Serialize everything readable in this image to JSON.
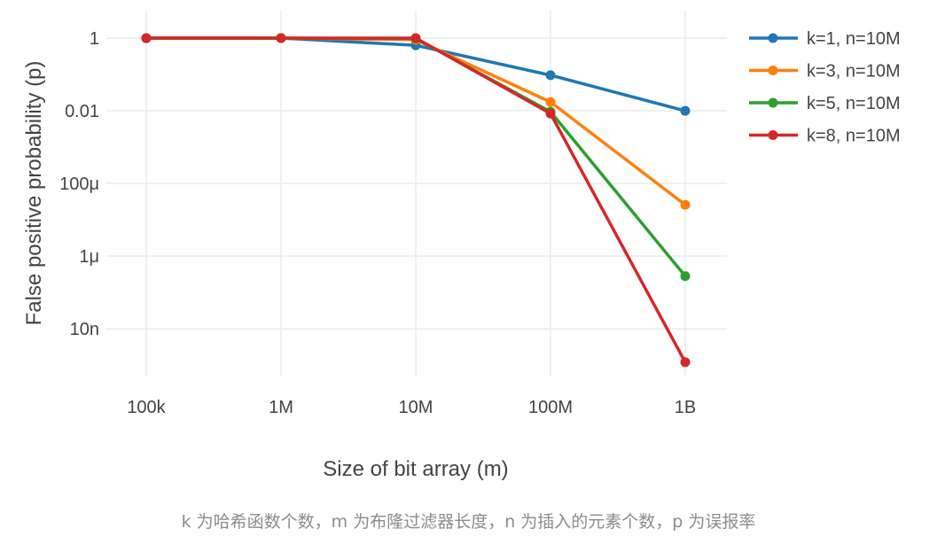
{
  "caption": "k 为哈希函数个数，m 为布隆过滤器长度，n 为插入的元素个数，p 为误报率",
  "chart_data": {
    "type": "line",
    "xlabel": "Size of bit array (m)",
    "ylabel": "False positive probability (p)",
    "x_scale": "log",
    "y_scale": "log",
    "x": [
      100000,
      1000000,
      10000000,
      100000000,
      1000000000
    ],
    "x_tick_labels": [
      "100k",
      "1M",
      "10M",
      "100M",
      "1B"
    ],
    "y_ticks": [
      1,
      0.01,
      0.0001,
      1e-06,
      1e-08
    ],
    "y_tick_labels": [
      "1",
      "0.01",
      "100μ",
      "1μ",
      "10n"
    ],
    "ylim": [
      2.5e-10,
      3
    ],
    "grid": true,
    "legend_position": "top-right",
    "series": [
      {
        "name": "k=1, n=10M",
        "color": "#1f77b4",
        "values": [
          0.99,
          0.99995,
          0.632,
          0.0952,
          0.00995
        ]
      },
      {
        "name": "k=3, n=10M",
        "color": "#ff7f0e",
        "values": [
          1.0,
          1.0,
          0.9,
          0.0174,
          2.57e-05
        ]
      },
      {
        "name": "k=5, n=10M",
        "color": "#2ca02c",
        "values": [
          1.0,
          1.0,
          0.97,
          0.0094,
          2.8e-07
        ]
      },
      {
        "name": "k=8, n=10M",
        "color": "#d62728",
        "values": [
          1.0,
          1.0,
          1.0,
          0.0084,
          1.2e-09
        ]
      }
    ]
  }
}
